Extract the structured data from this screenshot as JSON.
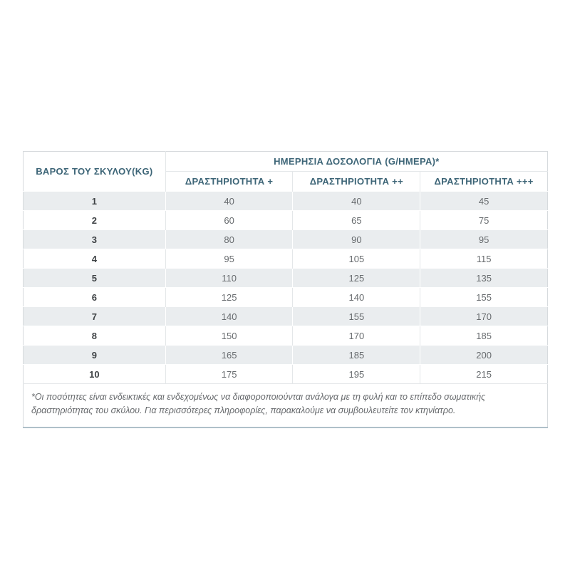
{
  "table": {
    "weight_header": "ΒΑΡΟΣ ΤΟΥ ΣΚΥΛΟΥ(KG)",
    "dosage_header": "ΗΜΕΡΗΣΙΑ ΔΟΣΟΛΟΓΙΑ (G/ΗΜΕΡΑ)*",
    "activity_headers": [
      "ΔΡΑΣΤΗΡΙΟΤΗΤΑ +",
      "ΔΡΑΣΤΗΡΙΟΤΗΤΑ ++",
      "ΔΡΑΣΤΗΡΙΟΤΗΤΑ +++"
    ],
    "rows": [
      {
        "weight": "1",
        "values": [
          "40",
          "40",
          "45"
        ]
      },
      {
        "weight": "2",
        "values": [
          "60",
          "65",
          "75"
        ]
      },
      {
        "weight": "3",
        "values": [
          "80",
          "90",
          "95"
        ]
      },
      {
        "weight": "4",
        "values": [
          "95",
          "105",
          "115"
        ]
      },
      {
        "weight": "5",
        "values": [
          "110",
          "125",
          "135"
        ]
      },
      {
        "weight": "6",
        "values": [
          "125",
          "140",
          "155"
        ]
      },
      {
        "weight": "7",
        "values": [
          "140",
          "155",
          "170"
        ]
      },
      {
        "weight": "8",
        "values": [
          "150",
          "170",
          "185"
        ]
      },
      {
        "weight": "9",
        "values": [
          "165",
          "185",
          "200"
        ]
      },
      {
        "weight": "10",
        "values": [
          "175",
          "195",
          "215"
        ]
      }
    ],
    "footnote": "*Οι ποσότητες είναι ενδεικτικές και ενδεχομένως να διαφοροποιούνται ανάλογα με τη φυλή και το επίπεδο σωματικής δραστηριότητας του σκύλου. Για περισσότερες πληροφορίες, παρακαλούμε να συμβουλευτείτε τον κτηνίατρο."
  },
  "colors": {
    "header_text": "#3d6577",
    "body_text": "#676b6e",
    "weight_text": "#3e4245",
    "stripe_bg": "#eaedef",
    "border_light": "#e4e7e9",
    "outer_border": "#d6dadd",
    "outer_bottom_border": "#afc0c9"
  }
}
